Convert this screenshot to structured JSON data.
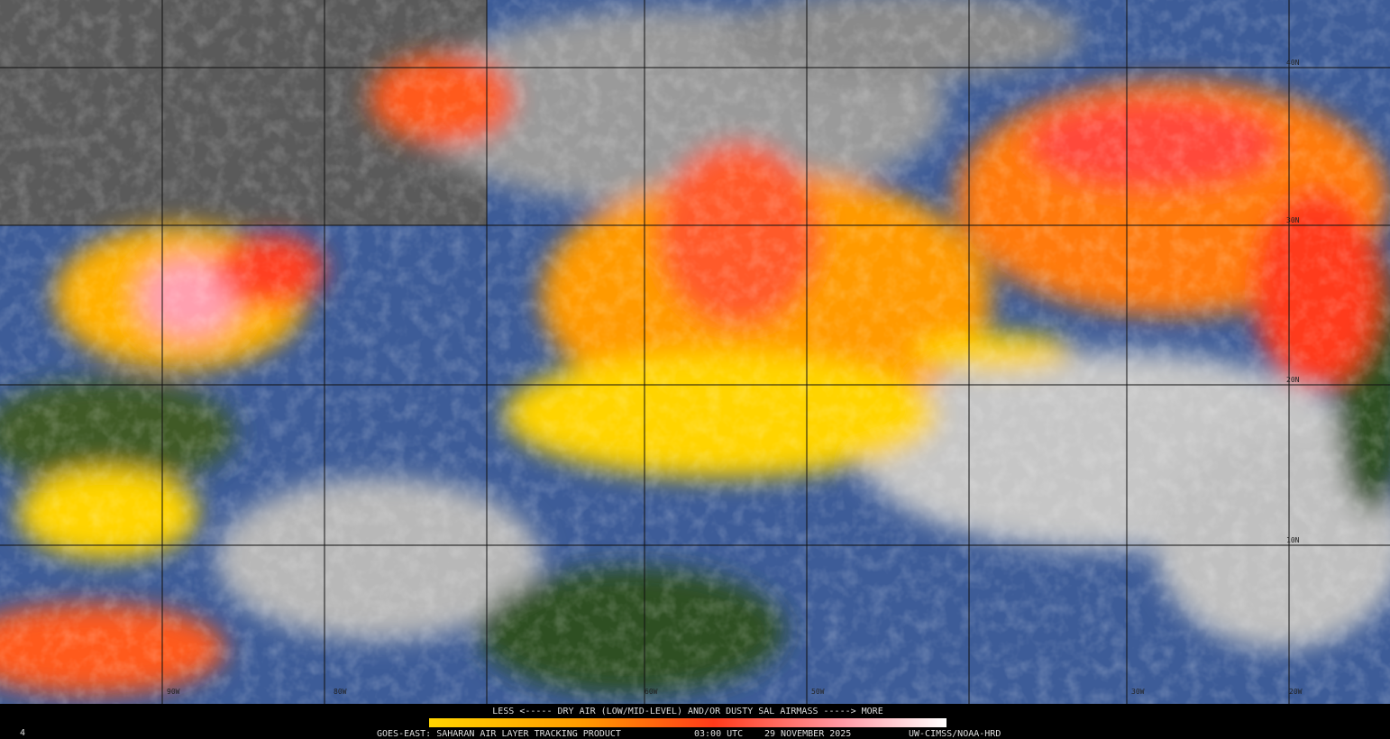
{
  "legend": {
    "caption": "LESS <----- DRY AIR (LOW/MID-LEVEL) AND/OR DUSTY SAL AIRMASS -----> MORE"
  },
  "footer": {
    "corner": "4",
    "product": "GOES-EAST: SAHARAN AIR LAYER TRACKING PRODUCT",
    "time": "03:00 UTC",
    "date": "29 NOVEMBER 2025",
    "credit": "UW-CIMSS/NOAA-HRD"
  },
  "grid": {
    "latitudes": [
      "40N",
      "30N",
      "20N",
      "10N"
    ],
    "longitudes": [
      "90W",
      "80W",
      "60W",
      "50W",
      "30W",
      "20W"
    ]
  }
}
